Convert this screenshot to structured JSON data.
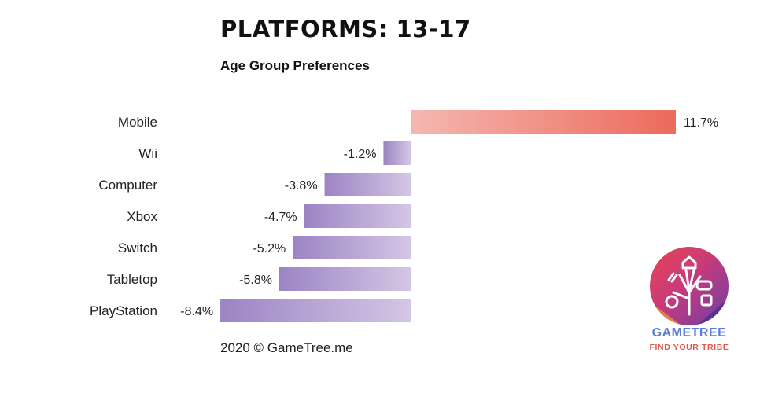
{
  "title": "PLATFORMS: 13-17",
  "subtitle": "Age Group Preferences",
  "footer": "2020 © GameTree.me",
  "logo": {
    "name": "GAMETREE",
    "tagline": "FIND YOUR TRIBE",
    "icon": "gametree-hand-icon"
  },
  "colors": {
    "positive_start": "#f4b8b0",
    "positive_end": "#ec6a5c",
    "negative_start": "#9c84c4",
    "negative_end": "#d4c6e4"
  },
  "chart_data": {
    "type": "bar",
    "orientation": "horizontal",
    "categories": [
      "Mobile",
      "Wii",
      "Computer",
      "Xbox",
      "Switch",
      "Tabletop",
      "PlayStation"
    ],
    "values": [
      11.7,
      -1.2,
      -3.8,
      -4.7,
      -5.2,
      -5.8,
      -8.4
    ],
    "labels": [
      "11.7%",
      "-1.2%",
      "-3.8%",
      "-4.7%",
      "-5.2%",
      "-5.8%",
      "-8.4%"
    ],
    "title": "PLATFORMS: 13-17",
    "subtitle": "Age Group Preferences",
    "xlim": [
      -8.4,
      11.7
    ],
    "grid": false,
    "legend": "none"
  }
}
